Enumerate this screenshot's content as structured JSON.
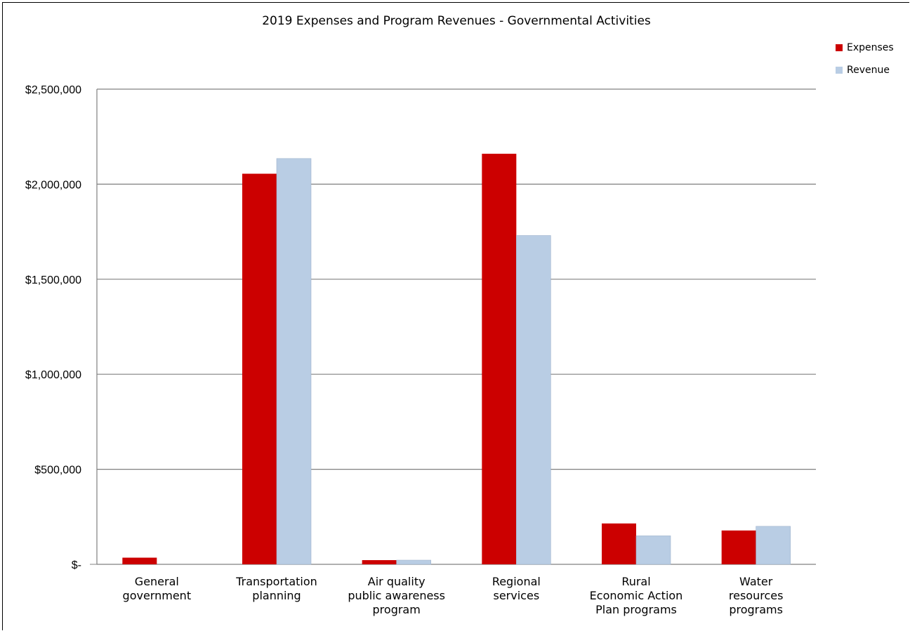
{
  "chart_data": {
    "type": "bar",
    "title": "2019 Expenses and Program Revenues - Governmental Activities",
    "categories": [
      [
        "General",
        "government"
      ],
      [
        "Transportation",
        "planning"
      ],
      [
        "Air quality",
        "public awareness",
        "program"
      ],
      [
        "Regional",
        "services"
      ],
      [
        "Rural",
        "Economic Action",
        "Plan programs"
      ],
      [
        "Water",
        "resources",
        "programs"
      ]
    ],
    "series": [
      {
        "name": "Expenses",
        "color": "#cc0000",
        "values": [
          35000,
          2055000,
          22000,
          2160000,
          215000,
          178000
        ]
      },
      {
        "name": "Revenue",
        "color": "#b9cde4",
        "values": [
          0,
          2135000,
          22000,
          1730000,
          150000,
          200000
        ]
      }
    ],
    "ylim": [
      0,
      2500000
    ],
    "yticks": [
      {
        "value": 2500000,
        "label": "$2,500,000"
      },
      {
        "value": 2000000,
        "label": "$2,000,000"
      },
      {
        "value": 1500000,
        "label": "$1,500,000"
      },
      {
        "value": 1000000,
        "label": "$1,000,000"
      },
      {
        "value": 500000,
        "label": "$500,000"
      },
      {
        "value": 0,
        "label": "$-"
      }
    ],
    "grid": true,
    "legend_position": "top-right"
  }
}
